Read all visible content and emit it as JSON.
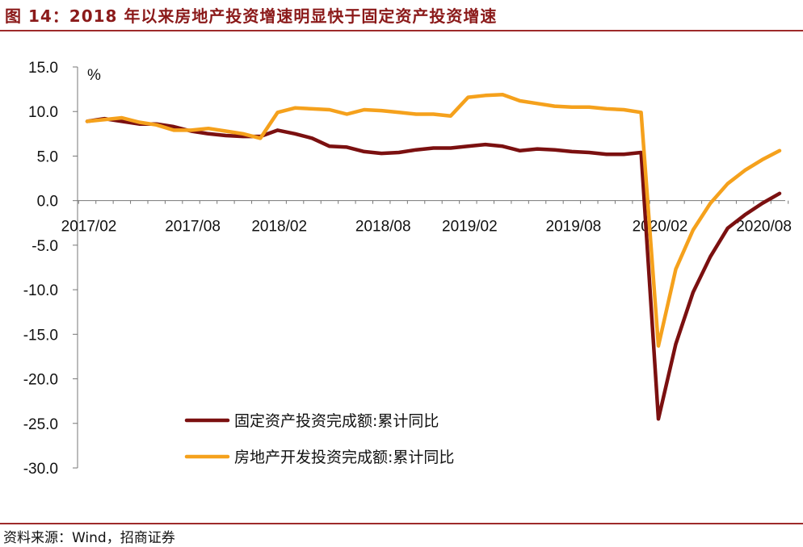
{
  "figure_title": "图 14：2018 年以来房地产投资增速明显快于固定资产投资增速",
  "source_note": "资料来源：Wind，招商证券",
  "chart_data": {
    "type": "line",
    "unit_label": "%",
    "ylim": [
      -30,
      15
    ],
    "yticks": [
      "15.0",
      "10.0",
      "5.0",
      "0.0",
      "-5.0",
      "-10.0",
      "-15.0",
      "-20.0",
      "-25.0",
      "-30.0"
    ],
    "ytick_values": [
      15,
      10,
      5,
      0,
      -5,
      -10,
      -15,
      -20,
      -25,
      -30
    ],
    "xtick_labels": [
      "2017/02",
      "2017/08",
      "2018/02",
      "2018/08",
      "2019/02",
      "2019/08",
      "2020/02",
      "2020/08"
    ],
    "x": [
      "2017/02",
      "2017/03",
      "2017/04",
      "2017/05",
      "2017/06",
      "2017/07",
      "2017/08",
      "2017/09",
      "2017/10",
      "2017/11",
      "2017/12",
      "2018/02",
      "2018/03",
      "2018/04",
      "2018/05",
      "2018/06",
      "2018/07",
      "2018/08",
      "2018/09",
      "2018/10",
      "2018/11",
      "2018/12",
      "2019/02",
      "2019/03",
      "2019/04",
      "2019/05",
      "2019/06",
      "2019/07",
      "2019/08",
      "2019/09",
      "2019/10",
      "2019/11",
      "2019/12",
      "2020/02",
      "2020/03",
      "2020/04",
      "2020/05",
      "2020/06",
      "2020/07",
      "2020/08",
      "2020/09"
    ],
    "legend_position": "lower-center",
    "grid": false,
    "series": [
      {
        "name": "固定资产投资完成额:累计同比",
        "color": "#7b1010",
        "values": [
          8.9,
          9.2,
          8.9,
          8.6,
          8.6,
          8.3,
          7.8,
          7.5,
          7.3,
          7.2,
          7.2,
          7.9,
          7.5,
          7.0,
          6.1,
          6.0,
          5.5,
          5.3,
          5.4,
          5.7,
          5.9,
          5.9,
          6.1,
          6.3,
          6.1,
          5.6,
          5.8,
          5.7,
          5.5,
          5.4,
          5.2,
          5.2,
          5.4,
          -24.5,
          -16.1,
          -10.3,
          -6.3,
          -3.1,
          -1.6,
          -0.3,
          0.8
        ]
      },
      {
        "name": "房地产开发投资完成额:累计同比",
        "color": "#f5a11c",
        "values": [
          8.9,
          9.1,
          9.3,
          8.8,
          8.5,
          7.9,
          7.9,
          8.1,
          7.8,
          7.5,
          7.0,
          9.9,
          10.4,
          10.3,
          10.2,
          9.7,
          10.2,
          10.1,
          9.9,
          9.7,
          9.7,
          9.5,
          11.6,
          11.8,
          11.9,
          11.2,
          10.9,
          10.6,
          10.5,
          10.5,
          10.3,
          10.2,
          9.9,
          -16.3,
          -7.7,
          -3.3,
          -0.3,
          1.9,
          3.4,
          4.6,
          5.6
        ]
      }
    ]
  }
}
